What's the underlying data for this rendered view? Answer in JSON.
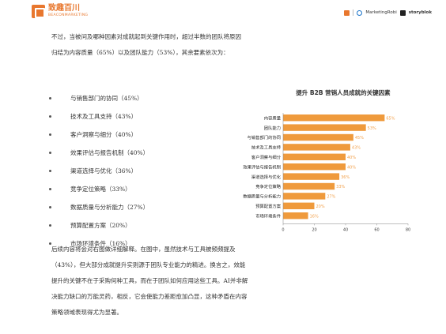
{
  "header": {
    "logo_cn": "致趣百川",
    "logo_en": "BEACONMARKETING",
    "partners": [
      "MarketingRobi",
      "storyblok"
    ]
  },
  "intro": "不过，当被问及哪种因素对成就起到关键作用时，超过半数的团队将原因归结为内容质量（65%）以及团队能力（53%），其余要素依次为：",
  "bullets": [
    "与销售部门的协同（45%）",
    "技术及工具支持（43%）",
    "客户洞察与细分（40%）",
    "效果评估与报告机制（40%）",
    "渠道选择与优化（36%）",
    "竞争定位策略（33%）",
    "数据质量与分析能力（27%）",
    "预算配置方案（20%）",
    "市场环境条件（16%）"
  ],
  "outro": "后续内容将会对右图做详细解释。在图中，虽然技术与工具被频频提及（43%），但大部分成就提升实则源于团队专业能力的精进。换言之，效能提升的关键不在于采购何种工具，而在于团队如何应用这些工具。AI并非解决能力缺口的万能灵药，相反，它会使能力差距愈加凸显，这种矛盾在内容策略领域表现得尤为显著。",
  "chart_data": {
    "type": "bar",
    "orientation": "horizontal",
    "title": "提升 B2B 营销人员成就的关键因素",
    "categories": [
      "内容质量",
      "团队能力",
      "与销售部门的协同",
      "技术及工具支持",
      "客户洞察与细分",
      "效果评估与报告机制",
      "渠道选择与优化",
      "竞争定位策略",
      "数据质量与分析能力",
      "预算配置方案",
      "市场环境条件"
    ],
    "values": [
      65,
      53,
      45,
      43,
      40,
      40,
      36,
      33,
      27,
      20,
      16
    ],
    "value_labels": [
      "65%",
      "53%",
      "45%",
      "43%",
      "40%",
      "40%",
      "36%",
      "33%",
      "27%",
      "20%",
      "16%"
    ],
    "x_ticks": [
      "0",
      "20",
      "40",
      "60",
      "80"
    ],
    "xlim": [
      0,
      80
    ],
    "grid": false,
    "bar_color": "#ef9a3c"
  }
}
